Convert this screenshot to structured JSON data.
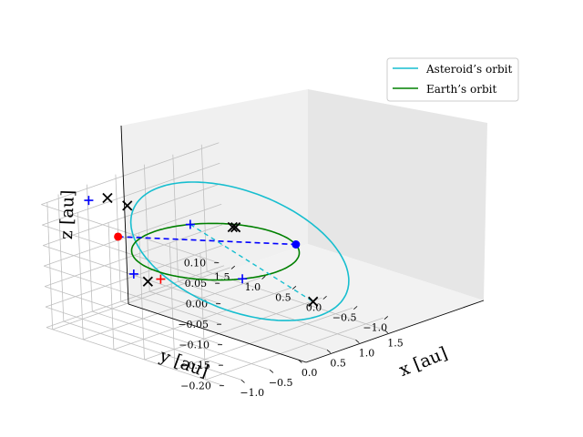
{
  "chart_data": {
    "type": "3d-line",
    "axes": {
      "x": {
        "label": "x [au]",
        "range": [
          -1.3,
          1.8
        ],
        "ticks": [
          -1.0,
          -0.5,
          0.0,
          0.5,
          1.0,
          1.5
        ],
        "tick_labels": [
          "−1.0",
          "−0.5",
          "0.0",
          "0.5",
          "1.0",
          "1.5"
        ]
      },
      "y": {
        "label": "y [au]",
        "range": [
          -1.3,
          1.6
        ],
        "ticks": [
          -1.0,
          -0.5,
          0.0,
          0.5,
          1.0,
          1.5
        ],
        "tick_labels": [
          "−1.0",
          "−0.5",
          "0.0",
          "0.5",
          "1.0",
          "1.5"
        ]
      },
      "z": {
        "label": "z [au]",
        "range": [
          -0.2,
          0.11
        ],
        "ticks": [
          -0.2,
          -0.15,
          -0.1,
          -0.05,
          0.0,
          0.05,
          0.1
        ],
        "tick_labels": [
          "−0.20",
          "−0.15",
          "−0.10",
          "−0.05",
          "0.00",
          "0.05",
          "0.10"
        ]
      }
    },
    "grid": true,
    "legend": {
      "position": "top-right",
      "entries": [
        {
          "label": "Asteroid’s orbit",
          "color": "#17becf"
        },
        {
          "label": "Earth’s orbit",
          "color": "#008000"
        }
      ]
    },
    "series": [
      {
        "name": "Asteroid’s orbit",
        "type": "ellipse",
        "color": "#17becf",
        "semi_major_axis": 1.3,
        "eccentricity": 0.25,
        "inclination_deg": 8,
        "argument_of_perihelion_deg": 160
      },
      {
        "name": "Earth’s orbit",
        "type": "circle",
        "color": "#008000",
        "radius": 1.0,
        "inclination_deg": 0
      }
    ],
    "markers": [
      {
        "label": "asteroid position",
        "symbol": "dot",
        "color": "#ff0000",
        "x": -0.75,
        "y": 0.88,
        "z": 0.03
      },
      {
        "label": "earth position",
        "symbol": "dot",
        "color": "#0000ff",
        "x": 0.87,
        "y": -0.5,
        "z": 0.0
      },
      {
        "label": "plus",
        "symbol": "+",
        "color": "#0000ff",
        "x": -1.0,
        "y": 1.1,
        "z": 0.12
      },
      {
        "label": "plus",
        "symbol": "+",
        "color": "#0000ff",
        "x": 0.49,
        "y": 0.87,
        "z": 0.0
      },
      {
        "label": "plus",
        "symbol": "+",
        "color": "#0000ff",
        "x": -0.47,
        "y": -0.88,
        "z": 0.0
      },
      {
        "label": "plus",
        "symbol": "+",
        "color": "#0000ff",
        "x": -0.85,
        "y": 0.55,
        "z": -0.04
      },
      {
        "label": "plus",
        "symbol": "+",
        "color": "#ff0000",
        "x": -0.65,
        "y": 0.3,
        "z": -0.05
      },
      {
        "label": "cross",
        "symbol": "x",
        "color": "#000000",
        "x": -0.78,
        "y": 1.0,
        "z": 0.12
      },
      {
        "label": "cross",
        "symbol": "x",
        "color": "#000000",
        "x": -0.6,
        "y": 0.85,
        "z": 0.1
      },
      {
        "label": "cross",
        "symbol": "x",
        "color": "#000000",
        "x": 0.78,
        "y": 0.45,
        "z": 0.0
      },
      {
        "label": "cross",
        "symbol": "x",
        "color": "#000000",
        "x": 0.8,
        "y": 0.42,
        "z": 0.0
      },
      {
        "label": "cross",
        "symbol": "x",
        "color": "#000000",
        "x": -0.82,
        "y": 0.35,
        "z": -0.05
      },
      {
        "label": "cross",
        "symbol": "x",
        "color": "#000000",
        "x": 1.0,
        "y": -0.62,
        "z": -0.14
      }
    ],
    "connector": {
      "label": "line of sight",
      "style": "dashed",
      "color": "#0000ff"
    },
    "dashed_segment": {
      "label": "asteroid orbit behind plane",
      "style": "dashed",
      "color": "#17becf"
    }
  }
}
